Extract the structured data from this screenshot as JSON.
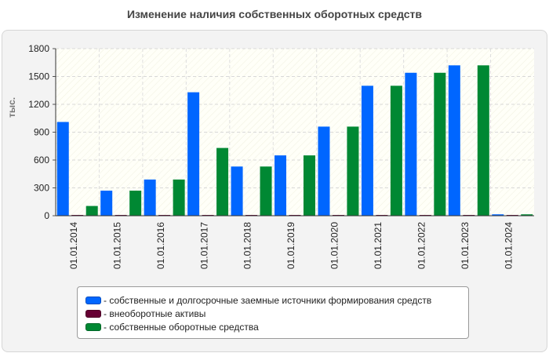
{
  "chart_data": {
    "type": "bar",
    "title": "Изменение наличия собственных оборотных средств",
    "ylabel": "тыс.",
    "xlabel": "",
    "ylim": [
      0,
      1800
    ],
    "yticks": [
      0,
      300,
      600,
      900,
      1200,
      1500,
      1800
    ],
    "grid": true,
    "legend_position": "bottom",
    "categories": [
      "01.01.2014",
      "01.01.2015",
      "01.01.2016",
      "01.01.2017",
      "01.01.2018",
      "01.01.2019",
      "01.01.2020",
      "01.01.2021",
      "01.01.2022",
      "01.01.2023",
      "01.01.2024"
    ],
    "series": [
      {
        "name": "собственные и долгосрочные заемные источники формирования средств",
        "color": "#0066ff",
        "values": [
          1010,
          270,
          390,
          1330,
          530,
          650,
          960,
          1400,
          1540,
          1620,
          15
        ]
      },
      {
        "name": "внеоборотные активы",
        "color": "#660033",
        "values": [
          4,
          4,
          4,
          4,
          4,
          4,
          4,
          4,
          4,
          4,
          4
        ]
      },
      {
        "name": "собственные оборотные средства",
        "color": "#008833",
        "values": [
          105,
          270,
          390,
          730,
          530,
          650,
          960,
          1400,
          1540,
          1620,
          15
        ]
      }
    ]
  }
}
